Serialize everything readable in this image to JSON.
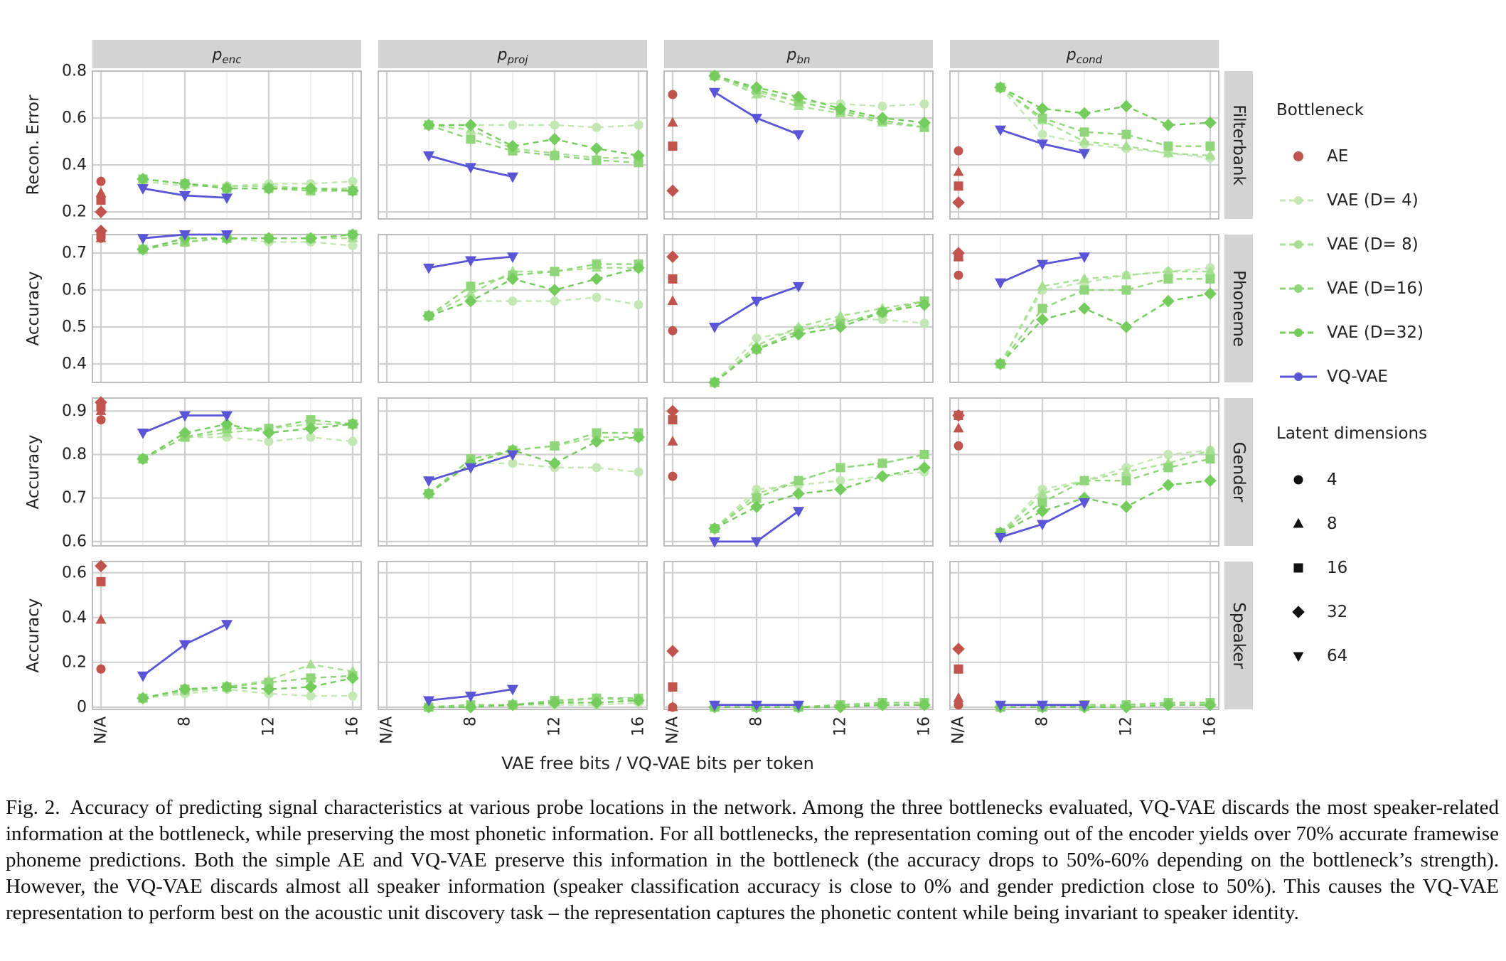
{
  "figure": {
    "columns": [
      {
        "base": "p",
        "sub": "enc"
      },
      {
        "base": "p",
        "sub": "proj"
      },
      {
        "base": "p",
        "sub": "bn"
      },
      {
        "base": "p",
        "sub": "cond"
      }
    ],
    "rows": [
      "Filterbank",
      "Phoneme",
      "Gender",
      "Speaker"
    ],
    "ylabels": [
      "Recon. Error",
      "Accuracy",
      "Accuracy",
      "Accuracy"
    ],
    "xlabel": "VAE free bits / VQ-VAE bits per token",
    "xticks": [
      "N/A",
      "8",
      "12",
      "16"
    ],
    "yticks": [
      [
        "0.2",
        "0.4",
        "0.6",
        "0.8"
      ],
      [
        "0.4",
        "0.5",
        "0.6",
        "0.7"
      ],
      [
        "0.6",
        "0.7",
        "0.8",
        "0.9"
      ],
      [
        "0",
        "0.2",
        "0.4",
        "0.6"
      ]
    ],
    "legend": {
      "bottleneck_title": "Bottleneck",
      "bottleneck_items": [
        "AE",
        "VAE (D= 4)",
        "VAE (D= 8)",
        "VAE (D=16)",
        "VAE (D=32)",
        "VQ-VAE"
      ],
      "latent_title": "Latent dimensions",
      "latent_items": [
        "4",
        "8",
        "16",
        "32",
        "64"
      ]
    }
  },
  "colors": {
    "AE": "#c0544c",
    "VAE (D= 4)": "#c4e8b4",
    "VAE (D= 8)": "#a8e093",
    "VAE (D=16)": "#8ed677",
    "VAE (D=32)": "#74cc5c",
    "VQ-VAE": "#5a55d6",
    "strip": "#d3d3d3",
    "grid": "#d0d0d0"
  },
  "chart_data": {
    "type": "line",
    "layout": "facet grid 4 rows x 4 columns",
    "xlabel": "VAE free bits / VQ-VAE bits per token",
    "x": [
      6,
      8,
      10,
      12,
      14,
      16
    ],
    "xticks": [
      "N/A",
      "8",
      "12",
      "16"
    ],
    "vqvae_x": [
      6,
      8,
      10
    ],
    "grid": true,
    "legend_position": "right",
    "ylims": [
      [
        0.17,
        0.8
      ],
      [
        0.35,
        0.75
      ],
      [
        0.59,
        0.93
      ],
      [
        -0.01,
        0.65
      ]
    ],
    "panels": [
      [
        {
          "ae": [
            0.33,
            0.28,
            0.25,
            0.2
          ],
          "vae": [
            [
              0.33,
              0.31,
              0.31,
              0.32,
              0.32,
              0.33
            ],
            [
              0.34,
              0.32,
              0.31,
              0.31,
              0.3,
              0.3
            ],
            [
              0.34,
              0.32,
              0.3,
              0.3,
              0.29,
              0.29
            ],
            [
              0.34,
              0.32,
              0.3,
              0.3,
              0.3,
              0.29
            ]
          ],
          "vq": [
            0.3,
            0.27,
            0.26
          ]
        },
        {
          "ae": [],
          "vae": [
            [
              0.57,
              0.57,
              0.57,
              0.57,
              0.56,
              0.57
            ],
            [
              0.57,
              0.55,
              0.47,
              0.45,
              0.43,
              0.43
            ],
            [
              0.57,
              0.51,
              0.46,
              0.44,
              0.42,
              0.41
            ],
            [
              0.57,
              0.57,
              0.48,
              0.51,
              0.47,
              0.44
            ]
          ],
          "vq": [
            0.44,
            0.39,
            0.35
          ]
        },
        {
          "ae": [
            0.7,
            0.58,
            0.48,
            0.29
          ],
          "vae": [
            [
              0.78,
              0.71,
              0.67,
              0.66,
              0.65,
              0.66
            ],
            [
              0.78,
              0.7,
              0.65,
              0.62,
              0.58,
              0.56
            ],
            [
              0.78,
              0.72,
              0.67,
              0.63,
              0.59,
              0.56
            ],
            [
              0.78,
              0.73,
              0.69,
              0.64,
              0.6,
              0.58
            ]
          ],
          "vq": [
            0.71,
            0.6,
            0.53
          ]
        },
        {
          "ae": [
            0.46,
            0.37,
            0.31,
            0.24
          ],
          "vae": [
            [
              0.73,
              0.53,
              0.49,
              0.47,
              0.45,
              0.43
            ],
            [
              0.73,
              0.59,
              0.5,
              0.48,
              0.45,
              0.44
            ],
            [
              0.73,
              0.6,
              0.54,
              0.53,
              0.48,
              0.48
            ],
            [
              0.73,
              0.64,
              0.62,
              0.65,
              0.57,
              0.58
            ]
          ],
          "vq": [
            0.55,
            0.49,
            0.45
          ]
        }
      ],
      [
        {
          "ae": [
            0.74,
            0.74,
            0.75,
            0.76
          ],
          "vae": [
            [
              0.71,
              0.74,
              0.74,
              0.73,
              0.73,
              0.72
            ],
            [
              0.71,
              0.73,
              0.74,
              0.74,
              0.74,
              0.74
            ],
            [
              0.71,
              0.73,
              0.74,
              0.74,
              0.74,
              0.75
            ],
            [
              0.71,
              0.74,
              0.74,
              0.74,
              0.74,
              0.75
            ]
          ],
          "vq": [
            0.74,
            0.75,
            0.75
          ]
        },
        {
          "ae": [],
          "vae": [
            [
              0.53,
              0.57,
              0.57,
              0.57,
              0.58,
              0.56
            ],
            [
              0.53,
              0.59,
              0.65,
              0.65,
              0.66,
              0.66
            ],
            [
              0.53,
              0.61,
              0.64,
              0.65,
              0.67,
              0.67
            ],
            [
              0.53,
              0.57,
              0.63,
              0.6,
              0.63,
              0.66
            ]
          ],
          "vq": [
            0.66,
            0.68,
            0.69
          ]
        },
        {
          "ae": [
            0.49,
            0.57,
            0.63,
            0.69
          ],
          "vae": [
            [
              0.35,
              0.47,
              0.49,
              0.52,
              0.52,
              0.51
            ],
            [
              0.35,
              0.45,
              0.5,
              0.53,
              0.55,
              0.57
            ],
            [
              0.35,
              0.44,
              0.49,
              0.51,
              0.54,
              0.57
            ],
            [
              0.35,
              0.44,
              0.48,
              0.5,
              0.54,
              0.56
            ]
          ],
          "vq": [
            0.5,
            0.57,
            0.61
          ]
        },
        {
          "ae": [
            0.64,
            0.69,
            0.69,
            0.7
          ],
          "vae": [
            [
              0.4,
              0.6,
              0.62,
              0.64,
              0.65,
              0.66
            ],
            [
              0.4,
              0.61,
              0.63,
              0.64,
              0.65,
              0.65
            ],
            [
              0.4,
              0.55,
              0.6,
              0.6,
              0.63,
              0.63
            ],
            [
              0.4,
              0.52,
              0.55,
              0.5,
              0.57,
              0.59
            ]
          ],
          "vq": [
            0.62,
            0.67,
            0.69
          ]
        }
      ],
      [
        {
          "ae": [
            0.88,
            0.9,
            0.91,
            0.92
          ],
          "vae": [
            [
              0.79,
              0.84,
              0.84,
              0.83,
              0.84,
              0.83
            ],
            [
              0.79,
              0.84,
              0.85,
              0.86,
              0.87,
              0.87
            ],
            [
              0.79,
              0.84,
              0.86,
              0.86,
              0.88,
              0.87
            ],
            [
              0.79,
              0.85,
              0.87,
              0.85,
              0.86,
              0.87
            ]
          ],
          "vq": [
            0.85,
            0.89,
            0.89
          ]
        },
        {
          "ae": [],
          "vae": [
            [
              0.71,
              0.78,
              0.78,
              0.77,
              0.77,
              0.76
            ],
            [
              0.71,
              0.79,
              0.81,
              0.82,
              0.84,
              0.84
            ],
            [
              0.71,
              0.79,
              0.81,
              0.82,
              0.85,
              0.85
            ],
            [
              0.71,
              0.78,
              0.81,
              0.78,
              0.83,
              0.84
            ]
          ],
          "vq": [
            0.74,
            0.77,
            0.8
          ]
        },
        {
          "ae": [
            0.75,
            0.83,
            0.88,
            0.9
          ],
          "vae": [
            [
              0.63,
              0.72,
              0.73,
              0.74,
              0.75,
              0.76
            ],
            [
              0.63,
              0.71,
              0.74,
              0.77,
              0.78,
              0.8
            ],
            [
              0.63,
              0.7,
              0.74,
              0.77,
              0.78,
              0.8
            ],
            [
              0.63,
              0.68,
              0.71,
              0.72,
              0.75,
              0.77
            ]
          ],
          "vq": [
            0.6,
            0.6,
            0.67
          ]
        },
        {
          "ae": [
            0.82,
            0.86,
            0.89,
            0.89
          ],
          "vae": [
            [
              0.62,
              0.72,
              0.74,
              0.77,
              0.8,
              0.81
            ],
            [
              0.62,
              0.71,
              0.74,
              0.76,
              0.78,
              0.81
            ],
            [
              0.62,
              0.69,
              0.74,
              0.74,
              0.77,
              0.79
            ],
            [
              0.62,
              0.67,
              0.7,
              0.68,
              0.73,
              0.74
            ]
          ],
          "vq": [
            0.61,
            0.64,
            0.69
          ]
        }
      ],
      [
        {
          "ae": [
            0.17,
            0.39,
            0.56,
            0.63
          ],
          "vae": [
            [
              0.04,
              0.06,
              0.08,
              0.06,
              0.05,
              0.05
            ],
            [
              0.04,
              0.07,
              0.09,
              0.12,
              0.19,
              0.16
            ],
            [
              0.04,
              0.08,
              0.09,
              0.11,
              0.13,
              0.14
            ],
            [
              0.04,
              0.08,
              0.09,
              0.08,
              0.09,
              0.13
            ]
          ],
          "vq": [
            0.14,
            0.28,
            0.37
          ]
        },
        {
          "ae": [],
          "vae": [
            [
              0.0,
              0.01,
              0.01,
              0.01,
              0.01,
              0.02
            ],
            [
              0.0,
              0.01,
              0.01,
              0.02,
              0.04,
              0.03
            ],
            [
              0.0,
              0.01,
              0.01,
              0.03,
              0.04,
              0.04
            ],
            [
              0.0,
              0.0,
              0.01,
              0.02,
              0.02,
              0.03
            ]
          ],
          "vq": [
            0.03,
            0.05,
            0.08
          ]
        },
        {
          "ae": [
            0.0,
            0.0,
            0.09,
            0.25
          ],
          "vae": [
            [
              0.0,
              0.0,
              0.0,
              0.01,
              0.01,
              0.01
            ],
            [
              0.0,
              0.0,
              0.0,
              0.01,
              0.01,
              0.01
            ],
            [
              0.0,
              0.0,
              0.0,
              0.01,
              0.02,
              0.02
            ],
            [
              0.0,
              0.0,
              0.0,
              0.0,
              0.01,
              0.01
            ]
          ],
          "vq": [
            0.01,
            0.01,
            0.01
          ]
        },
        {
          "ae": [
            0.01,
            0.04,
            0.17,
            0.26
          ],
          "vae": [
            [
              0.0,
              0.0,
              0.0,
              0.01,
              0.01,
              0.01
            ],
            [
              0.0,
              0.0,
              0.0,
              0.01,
              0.02,
              0.02
            ],
            [
              0.0,
              0.0,
              0.01,
              0.01,
              0.02,
              0.02
            ],
            [
              0.0,
              0.0,
              0.0,
              0.0,
              0.01,
              0.01
            ]
          ],
          "vq": [
            0.01,
            0.01,
            0.01
          ]
        }
      ]
    ],
    "ae_latent_dims": [
      "4",
      "8",
      "16",
      "32"
    ],
    "vae_series_names": [
      "VAE (D= 4)",
      "VAE (D= 8)",
      "VAE (D=16)",
      "VAE (D=32)"
    ],
    "vae_markers": [
      "circle",
      "triangle-up",
      "square",
      "diamond"
    ],
    "vq_series_name": "VQ-VAE",
    "vq_marker": "triangle-down"
  },
  "caption": {
    "label": "Fig. 2.",
    "text": "Accuracy of predicting signal characteristics at various probe locations in the network. Among the three bottlenecks evaluated, VQ-VAE discards the most speaker-related information at the bottleneck, while preserving the most phonetic information. For all bottlenecks, the representation coming out of the encoder yields over 70% accurate framewise phoneme predictions. Both the simple AE and VQ-VAE preserve this information in the bottleneck (the accuracy drops to 50%-60% depending on the bottleneck’s strength). However, the VQ-VAE discards almost all speaker information (speaker classification accuracy is close to 0% and gender prediction close to 50%). This causes the VQ-VAE representation to perform best on the acoustic unit discovery task – the representation captures the phonetic content while being invariant to speaker identity."
  }
}
